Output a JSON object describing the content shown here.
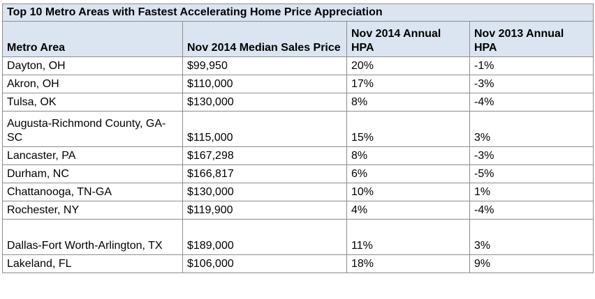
{
  "title": "Top 10 Metro Areas with Fastest Accelerating Home Price Appreciation",
  "headers": {
    "metro": "Metro Area",
    "price": "Nov 2014 Median Sales Price",
    "hpa2014": "Nov 2014 Annual HPA",
    "hpa2013": "Nov 2013 Annual HPA"
  },
  "rows": [
    {
      "metro": "Dayton, OH",
      "price": "$99,950",
      "hpa2014": "20%",
      "hpa2013": "-1%"
    },
    {
      "metro": "Akron, OH",
      "price": "$110,000",
      "hpa2014": "17%",
      "hpa2013": "-3%"
    },
    {
      "metro": "Tulsa, OK",
      "price": "$130,000",
      "hpa2014": "8%",
      "hpa2013": "-4%"
    },
    {
      "metro": "Augusta-Richmond County, GA-SC",
      "price": "$115,000",
      "hpa2014": "15%",
      "hpa2013": "3%"
    },
    {
      "metro": "Lancaster, PA",
      "price": "$167,298",
      "hpa2014": "8%",
      "hpa2013": "-3%"
    },
    {
      "metro": "Durham, NC",
      "price": "$166,817",
      "hpa2014": "6%",
      "hpa2013": "-5%"
    },
    {
      "metro": "Chattanooga, TN-GA",
      "price": "$130,000",
      "hpa2014": "10%",
      "hpa2013": "1%"
    },
    {
      "metro": "Rochester, NY",
      "price": "$119,900",
      "hpa2014": "4%",
      "hpa2013": "-4%"
    },
    {
      "metro": "Dallas-Fort Worth-Arlington, TX",
      "price": "$189,000",
      "hpa2014": "11%",
      "hpa2013": "3%"
    },
    {
      "metro": "Lakeland, FL",
      "price": "$106,000",
      "hpa2014": "18%",
      "hpa2013": "9%"
    }
  ],
  "colors": {
    "header_bg": "#dbe5f1",
    "border": "#8c8c8c"
  }
}
